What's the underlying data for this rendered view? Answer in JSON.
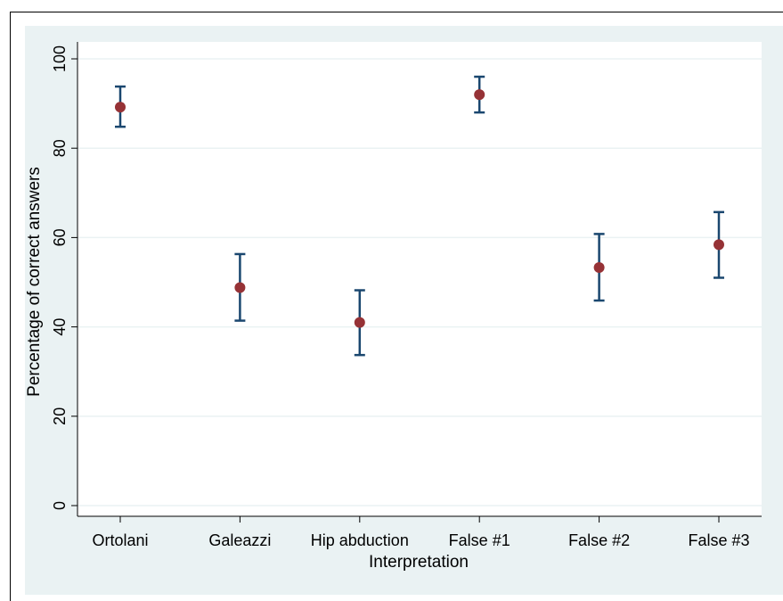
{
  "chart_data": {
    "type": "scatter",
    "title": "",
    "xlabel": "Interpretation",
    "ylabel": "Percentage of correct answers",
    "categories": [
      "Ortolani",
      "Galeazzi",
      "Hip abduction",
      "False #1",
      "False #2",
      "False #3"
    ],
    "series": [
      {
        "values": [
          89.2,
          48.8,
          41.0,
          92.0,
          53.3,
          58.4
        ],
        "ci_low": [
          84.8,
          41.4,
          33.7,
          88.0,
          45.9,
          51.0
        ],
        "ci_high": [
          93.8,
          56.3,
          48.2,
          96.0,
          60.8,
          65.7
        ]
      }
    ],
    "ylim": [
      0,
      100
    ],
    "yticks": [
      "0",
      "20",
      "40",
      "60",
      "80",
      "100"
    ],
    "grid": true,
    "legend": "none",
    "colors": {
      "marker": "#963236",
      "error_bar": "#1a476f",
      "plot_background": "#ffffff",
      "outer_background": "#eaf2f3",
      "gridline": "#eaf2f3"
    }
  }
}
